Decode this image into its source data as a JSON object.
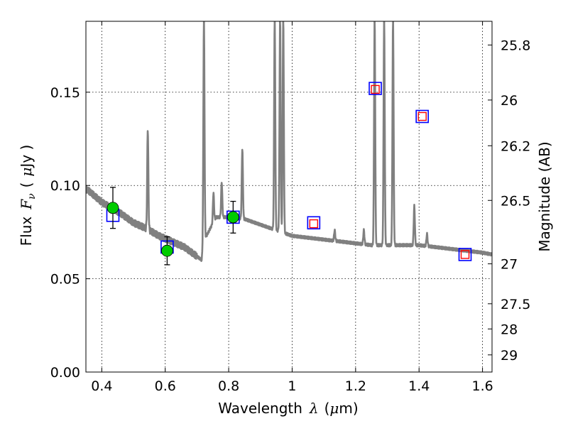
{
  "chart_data": {
    "type": "scatter",
    "xlabel": "Wavelength",
    "xlabel_symbol": "λ",
    "xlabel_unit_open": "(",
    "xlabel_unit_mu": "μ",
    "xlabel_unit_rest": "m)",
    "ylabel": "Flux",
    "ylabel_symbol": "F",
    "ylabel_symbol_sub": "ν",
    "ylabel_unit_open": "(",
    "ylabel_unit_mu": "μ",
    "ylabel_unit_rest": "Jy )",
    "y2label": "Magnitude (AB)",
    "xlim": [
      0.35,
      1.63
    ],
    "ylim": [
      0.0,
      0.188
    ],
    "grid": true,
    "x_ticks": [
      {
        "value": 0.4,
        "label": "0.4"
      },
      {
        "value": 0.6,
        "label": "0.6"
      },
      {
        "value": 0.8,
        "label": "0.8"
      },
      {
        "value": 1.0,
        "label": "1"
      },
      {
        "value": 1.2,
        "label": "1.2"
      },
      {
        "value": 1.4,
        "label": "1.4"
      },
      {
        "value": 1.6,
        "label": "1.6"
      }
    ],
    "y_ticks": [
      {
        "value": 0.0,
        "label": "0.00"
      },
      {
        "value": 0.05,
        "label": "0.05"
      },
      {
        "value": 0.1,
        "label": "0.10"
      },
      {
        "value": 0.15,
        "label": "0.15"
      }
    ],
    "y2_ticks": [
      {
        "label": "25.8",
        "flux": 0.1753
      },
      {
        "label": "26",
        "flux": 0.1458
      },
      {
        "label": "26.2",
        "flux": 0.1213
      },
      {
        "label": "26.5",
        "flux": 0.092
      },
      {
        "label": "27",
        "flux": 0.058
      },
      {
        "label": "27.5",
        "flux": 0.0366
      },
      {
        "label": "28",
        "flux": 0.0231
      },
      {
        "label": "29",
        "flux": 0.0092
      }
    ],
    "template_spectrum": {
      "color": "#808080",
      "continuum": [
        [
          0.35,
          0.098
        ],
        [
          0.36,
          0.097
        ],
        [
          0.38,
          0.094
        ],
        [
          0.4,
          0.091
        ],
        [
          0.43,
          0.088
        ],
        [
          0.46,
          0.085
        ],
        [
          0.5,
          0.08
        ],
        [
          0.54,
          0.077
        ],
        [
          0.58,
          0.073
        ],
        [
          0.62,
          0.07
        ],
        [
          0.66,
          0.067
        ],
        [
          0.7,
          0.062
        ],
        [
          0.715,
          0.06
        ],
        [
          0.72,
          0.07
        ],
        [
          0.73,
          0.073
        ],
        [
          0.76,
          0.083
        ],
        [
          0.8,
          0.083
        ],
        [
          0.85,
          0.082
        ],
        [
          0.9,
          0.079
        ],
        [
          0.95,
          0.076
        ],
        [
          1.0,
          0.073
        ],
        [
          1.05,
          0.072
        ],
        [
          1.1,
          0.071
        ],
        [
          1.15,
          0.07
        ],
        [
          1.2,
          0.069
        ],
        [
          1.25,
          0.068
        ],
        [
          1.3,
          0.068
        ],
        [
          1.35,
          0.068
        ],
        [
          1.4,
          0.068
        ],
        [
          1.45,
          0.067
        ],
        [
          1.5,
          0.066
        ],
        [
          1.55,
          0.065
        ],
        [
          1.6,
          0.064
        ],
        [
          1.63,
          0.063
        ]
      ],
      "emission_lines": [
        {
          "x": 0.545,
          "peak": 0.131
        },
        {
          "x": 0.722,
          "peak": 0.19
        },
        {
          "x": 0.752,
          "peak": 0.096
        },
        {
          "x": 0.778,
          "peak": 0.102
        },
        {
          "x": 0.843,
          "peak": 0.12
        },
        {
          "x": 0.945,
          "peak": 0.19
        },
        {
          "x": 0.962,
          "peak": 0.19
        },
        {
          "x": 0.972,
          "peak": 0.19
        },
        {
          "x": 1.134,
          "peak": 0.076
        },
        {
          "x": 1.226,
          "peak": 0.076
        },
        {
          "x": 1.26,
          "peak": 0.19
        },
        {
          "x": 1.29,
          "peak": 0.19
        },
        {
          "x": 1.318,
          "peak": 0.19
        },
        {
          "x": 1.385,
          "peak": 0.089
        },
        {
          "x": 1.425,
          "peak": 0.074
        }
      ]
    },
    "observed_points": {
      "color": "#00cc00",
      "points": [
        {
          "x": 0.435,
          "y": 0.088,
          "err_low": 0.011,
          "err_high": 0.011
        },
        {
          "x": 0.606,
          "y": 0.065,
          "err_low": 0.0075,
          "err_high": 0.0075
        },
        {
          "x": 0.814,
          "y": 0.083,
          "err_low": 0.0085,
          "err_high": 0.0085
        }
      ]
    },
    "model_points_blue": {
      "color": "#0000ff",
      "points": [
        {
          "x": 0.435,
          "y": 0.084
        },
        {
          "x": 0.606,
          "y": 0.067
        },
        {
          "x": 0.814,
          "y": 0.083
        },
        {
          "x": 1.068,
          "y": 0.08
        },
        {
          "x": 1.262,
          "y": 0.152
        },
        {
          "x": 1.41,
          "y": 0.137
        },
        {
          "x": 1.545,
          "y": 0.063
        }
      ]
    },
    "model_points_red": {
      "color": "#ff0000",
      "points": [
        {
          "x": 1.068,
          "y": 0.0795
        },
        {
          "x": 1.262,
          "y": 0.1515
        },
        {
          "x": 1.41,
          "y": 0.137
        },
        {
          "x": 1.545,
          "y": 0.063
        }
      ]
    }
  }
}
